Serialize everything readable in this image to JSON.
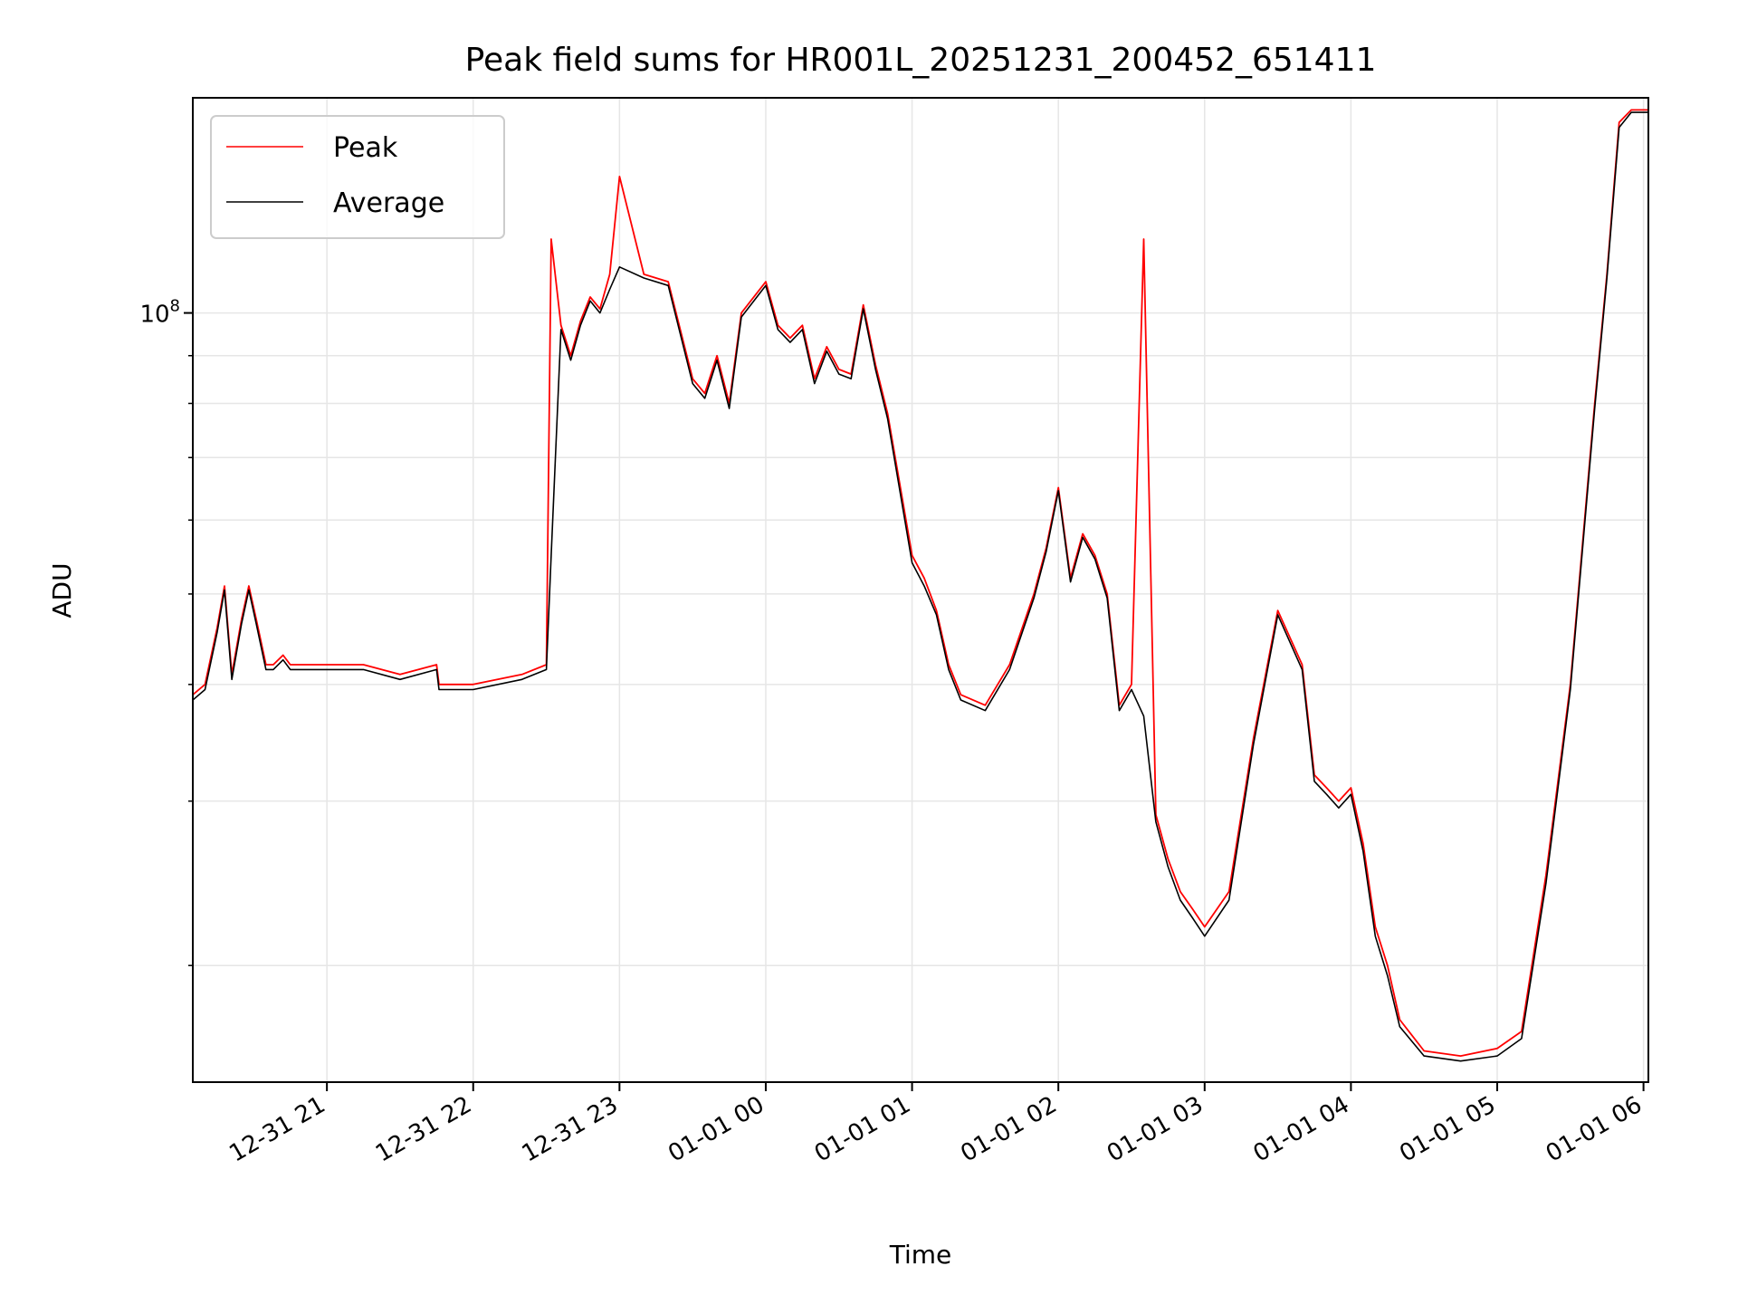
{
  "chart_data": {
    "type": "line",
    "title": "Peak field sums for HR001L_20251231_200452_651411",
    "xlabel": "Time",
    "ylabel": "ADU",
    "yscale": "log",
    "ylim": [
      15000000,
      170000000
    ],
    "xlim": [
      "12-31 20:05",
      "01-01 06:02"
    ],
    "grid": true,
    "legend_position": "top-left",
    "x_ticks": [
      "12-31 21",
      "12-31 22",
      "12-31 23",
      "01-01 00",
      "01-01 01",
      "01-01 02",
      "01-01 03",
      "01-01 04",
      "01-01 05",
      "01-01 06"
    ],
    "y_ticks": [
      {
        "label": "10",
        "exponent": "8",
        "value": 100000000
      }
    ],
    "x": [
      "12-31 20:05",
      "12-31 20:10",
      "12-31 20:15",
      "12-31 20:18",
      "12-31 20:21",
      "12-31 20:25",
      "12-31 20:28",
      "12-31 20:31",
      "12-31 20:35",
      "12-31 20:38",
      "12-31 20:42",
      "12-31 20:45",
      "12-31 21:00",
      "12-31 21:15",
      "12-31 21:30",
      "12-31 21:45",
      "12-31 21:46",
      "12-31 22:00",
      "12-31 22:20",
      "12-31 22:30",
      "12-31 22:32",
      "12-31 22:36",
      "12-31 22:40",
      "12-31 22:44",
      "12-31 22:48",
      "12-31 22:52",
      "12-31 22:56",
      "12-31 23:00",
      "12-31 23:10",
      "12-31 23:20",
      "12-31 23:30",
      "12-31 23:35",
      "12-31 23:40",
      "12-31 23:45",
      "12-31 23:50",
      "01-01 00:00",
      "01-01 00:05",
      "01-01 00:10",
      "01-01 00:15",
      "01-01 00:20",
      "01-01 00:25",
      "01-01 00:30",
      "01-01 00:35",
      "01-01 00:40",
      "01-01 00:45",
      "01-01 00:50",
      "01-01 01:00",
      "01-01 01:05",
      "01-01 01:10",
      "01-01 01:15",
      "01-01 01:20",
      "01-01 01:30",
      "01-01 01:40",
      "01-01 01:50",
      "01-01 01:55",
      "01-01 02:00",
      "01-01 02:05",
      "01-01 02:10",
      "01-01 02:15",
      "01-01 02:20",
      "01-01 02:25",
      "01-01 02:30",
      "01-01 02:35",
      "01-01 02:40",
      "01-01 02:45",
      "01-01 02:50",
      "01-01 02:55",
      "01-01 03:00",
      "01-01 03:10",
      "01-01 03:20",
      "01-01 03:30",
      "01-01 03:40",
      "01-01 03:45",
      "01-01 03:50",
      "01-01 03:55",
      "01-01 04:00",
      "01-01 04:05",
      "01-01 04:10",
      "01-01 04:15",
      "01-01 04:20",
      "01-01 04:30",
      "01-01 04:45",
      "01-01 05:00",
      "01-01 05:10",
      "01-01 05:20",
      "01-01 05:30",
      "01-01 05:40",
      "01-01 05:45",
      "01-01 05:50",
      "01-01 05:55",
      "01-01 06:00",
      "01-01 06:02"
    ],
    "series": [
      {
        "name": "Peak",
        "color": "#ff0000",
        "values": [
          39000000,
          40000000,
          46000000,
          51000000,
          41000000,
          47000000,
          51000000,
          47000000,
          42000000,
          42000000,
          43000000,
          42000000,
          42000000,
          42000000,
          41000000,
          42000000,
          40000000,
          40000000,
          41000000,
          42000000,
          120000000,
          97000000,
          90000000,
          98000000,
          104000000,
          101000000,
          110000000,
          140000000,
          110000000,
          108000000,
          85000000,
          82000000,
          90000000,
          80000000,
          100000000,
          108000000,
          97000000,
          94000000,
          97000000,
          85000000,
          92000000,
          87000000,
          86000000,
          102000000,
          88000000,
          78000000,
          55000000,
          52000000,
          48000000,
          42000000,
          39000000,
          38000000,
          42000000,
          50000000,
          56000000,
          65000000,
          52000000,
          58000000,
          55000000,
          50000000,
          38000000,
          40000000,
          120000000,
          29000000,
          26000000,
          24000000,
          23000000,
          22000000,
          24000000,
          35000000,
          48000000,
          42000000,
          32000000,
          31000000,
          30000000,
          31000000,
          27000000,
          22000000,
          20000000,
          17500000,
          16200000,
          16000000,
          16300000,
          17000000,
          25000000,
          40000000,
          80000000,
          110000000,
          160000000,
          165000000,
          165000000,
          165000000
        ]
      },
      {
        "name": "Average",
        "color": "#000000",
        "values": [
          38500000,
          39500000,
          45500000,
          50500000,
          40500000,
          46500000,
          50500000,
          46500000,
          41500000,
          41500000,
          42500000,
          41500000,
          41500000,
          41500000,
          40500000,
          41500000,
          39500000,
          39500000,
          40500000,
          41500000,
          55000000,
          96000000,
          89000000,
          97000000,
          103000000,
          100000000,
          106000000,
          112000000,
          109000000,
          107000000,
          84000000,
          81000000,
          89000000,
          79000000,
          99000000,
          107000000,
          96000000,
          93000000,
          96000000,
          84000000,
          91000000,
          86000000,
          85000000,
          101000000,
          87000000,
          77000000,
          54000000,
          51000000,
          47500000,
          41500000,
          38500000,
          37500000,
          41500000,
          49500000,
          55500000,
          64500000,
          51500000,
          57500000,
          54500000,
          49500000,
          37500000,
          39500000,
          37000000,
          28500000,
          25500000,
          23500000,
          22500000,
          21500000,
          23500000,
          34500000,
          47500000,
          41500000,
          31500000,
          30500000,
          29500000,
          30500000,
          26500000,
          21500000,
          19500000,
          17200000,
          16000000,
          15800000,
          16000000,
          16700000,
          24500000,
          39500000,
          79000000,
          109000000,
          158000000,
          164000000,
          164000000,
          164000000
        ]
      }
    ]
  }
}
